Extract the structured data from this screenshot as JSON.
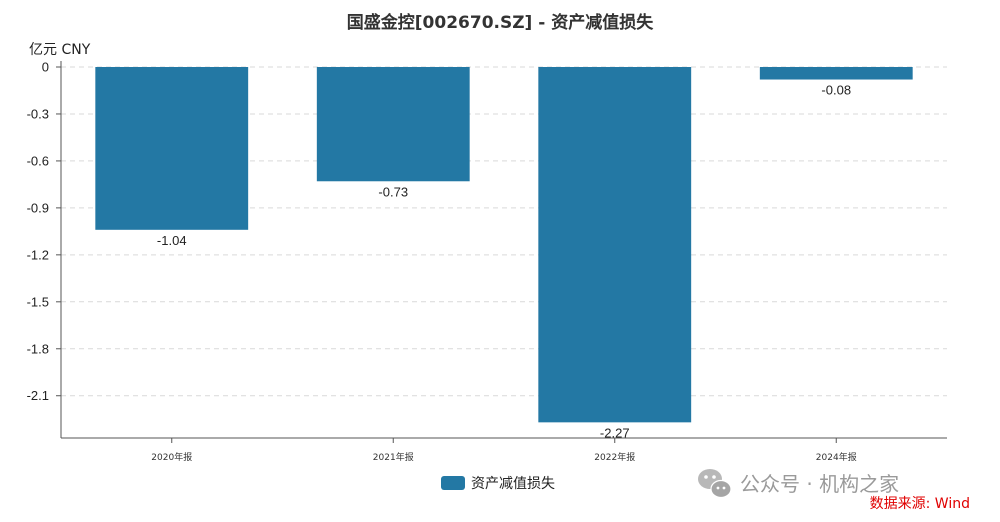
{
  "chart_data": {
    "type": "bar",
    "title": "国盛金控[002670.SZ] - 资产减值损失",
    "unit": "亿元  CNY",
    "categories": [
      "2020年报",
      "2021年报",
      "2022年报",
      "2024年报"
    ],
    "series": [
      {
        "name": "资产减值损失",
        "values": [
          -1.04,
          -0.73,
          -2.27,
          -0.08
        ],
        "color": "#2378a4"
      }
    ],
    "data_labels": [
      "-1.04",
      "-0.73",
      "-2.27",
      "-0.08"
    ],
    "yticks": [
      0,
      -0.3,
      -0.6,
      -0.9,
      -1.2,
      -1.5,
      -1.8,
      -2.1
    ],
    "ytick_labels": [
      "0",
      "-0.3",
      "-0.6",
      "-0.9",
      "-1.2",
      "-1.5",
      "-1.8",
      "-2.1"
    ],
    "ylim": [
      -2.37,
      0
    ],
    "grid": true,
    "grid_style": "dashed",
    "legend_position": "bottom-center"
  },
  "watermark": {
    "text": "公众号 · 机构之家",
    "icon": "wechat-icon"
  },
  "source": {
    "text": "数据来源: Wind"
  }
}
